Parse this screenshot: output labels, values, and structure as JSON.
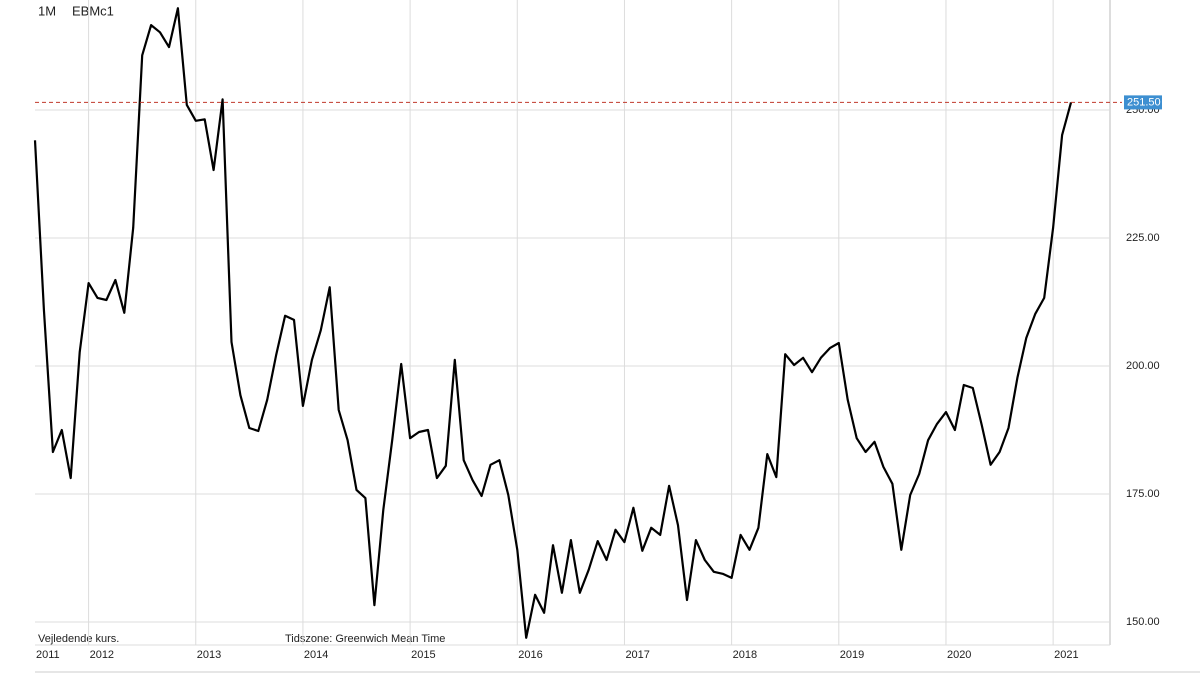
{
  "chart_data": {
    "type": "line",
    "interval": "1M",
    "symbol": "EBMc1",
    "note_left": "Vejledende kurs.",
    "note_timezone": "Tidszone: Greenwich Mean Time",
    "categories": [
      "2011",
      null,
      null,
      null,
      null,
      null,
      "2012",
      null,
      null,
      null,
      null,
      null,
      null,
      null,
      null,
      null,
      null,
      null,
      "2013",
      null,
      null,
      null,
      null,
      null,
      null,
      null,
      null,
      null,
      null,
      null,
      "2014",
      null,
      null,
      null,
      null,
      null,
      null,
      null,
      null,
      null,
      null,
      null,
      "2015",
      null,
      null,
      null,
      null,
      null,
      null,
      null,
      null,
      null,
      null,
      null,
      "2016",
      null,
      null,
      null,
      null,
      null,
      null,
      null,
      null,
      null,
      null,
      null,
      "2017",
      null,
      null,
      null,
      null,
      null,
      null,
      null,
      null,
      null,
      null,
      null,
      "2018",
      null,
      null,
      null,
      null,
      null,
      null,
      null,
      null,
      null,
      null,
      null,
      "2019",
      null,
      null,
      null,
      null,
      null,
      null,
      null,
      null,
      null,
      null,
      null,
      "2020",
      null,
      null,
      null,
      null,
      null,
      null,
      null,
      null,
      null,
      null,
      null,
      "2021",
      null,
      null
    ],
    "series": [
      {
        "name": "EBMc1",
        "color": "#000000",
        "values": [
          244.1,
          211,
          183.2,
          187.5,
          178.1,
          202.7,
          216.2,
          213.3,
          212.9,
          216.8,
          210.4,
          227,
          260.7,
          266.6,
          265.2,
          262.3,
          269.9,
          251,
          247.9,
          248.2,
          238.3,
          252.1,
          204.7,
          194.3,
          187.9,
          187.3,
          193.4,
          202.1,
          209.8,
          209,
          192.2,
          201.2,
          207,
          215.4,
          191.4,
          185.5,
          175.8,
          174.2,
          153.3,
          171.9,
          185.5,
          200.4,
          185.9,
          187.1,
          187.5,
          178.1,
          180.5,
          201.2,
          181.6,
          177.7,
          174.6,
          180.7,
          181.6,
          174.8,
          164.1,
          146.9,
          155.3,
          151.8,
          165,
          155.7,
          166,
          155.7,
          160.2,
          165.8,
          162.1,
          168,
          165.6,
          172.3,
          163.9,
          168.4,
          167,
          176.6,
          168.9,
          154.3,
          166,
          162.1,
          159.8,
          159.4,
          158.6,
          167,
          164.1,
          168.4,
          182.8,
          178.3,
          202.3,
          200.2,
          201.6,
          198.8,
          201.6,
          203.5,
          204.5,
          193.4,
          185.9,
          183.2,
          185.2,
          180.3,
          177,
          164.1,
          174.8,
          178.9,
          185.5,
          188.7,
          191,
          187.5,
          196.3,
          195.7,
          188.5,
          180.7,
          183.2,
          187.9,
          197.7,
          205.5,
          210.2,
          213.3,
          227,
          245.1,
          251.5
        ]
      }
    ],
    "price_line": {
      "value": 251.5,
      "label": "251.50",
      "color": "#c0392b",
      "label_color": "#3d8fd1"
    },
    "ylim": [
      145.5,
      271.5
    ],
    "yticks": [
      {
        "value": 150,
        "label": "150.00"
      },
      {
        "value": 175,
        "label": "175.00"
      },
      {
        "value": 200,
        "label": "200.00"
      },
      {
        "value": 225,
        "label": "225.00"
      },
      {
        "value": 250,
        "label": "250.00"
      }
    ],
    "grid": true
  }
}
